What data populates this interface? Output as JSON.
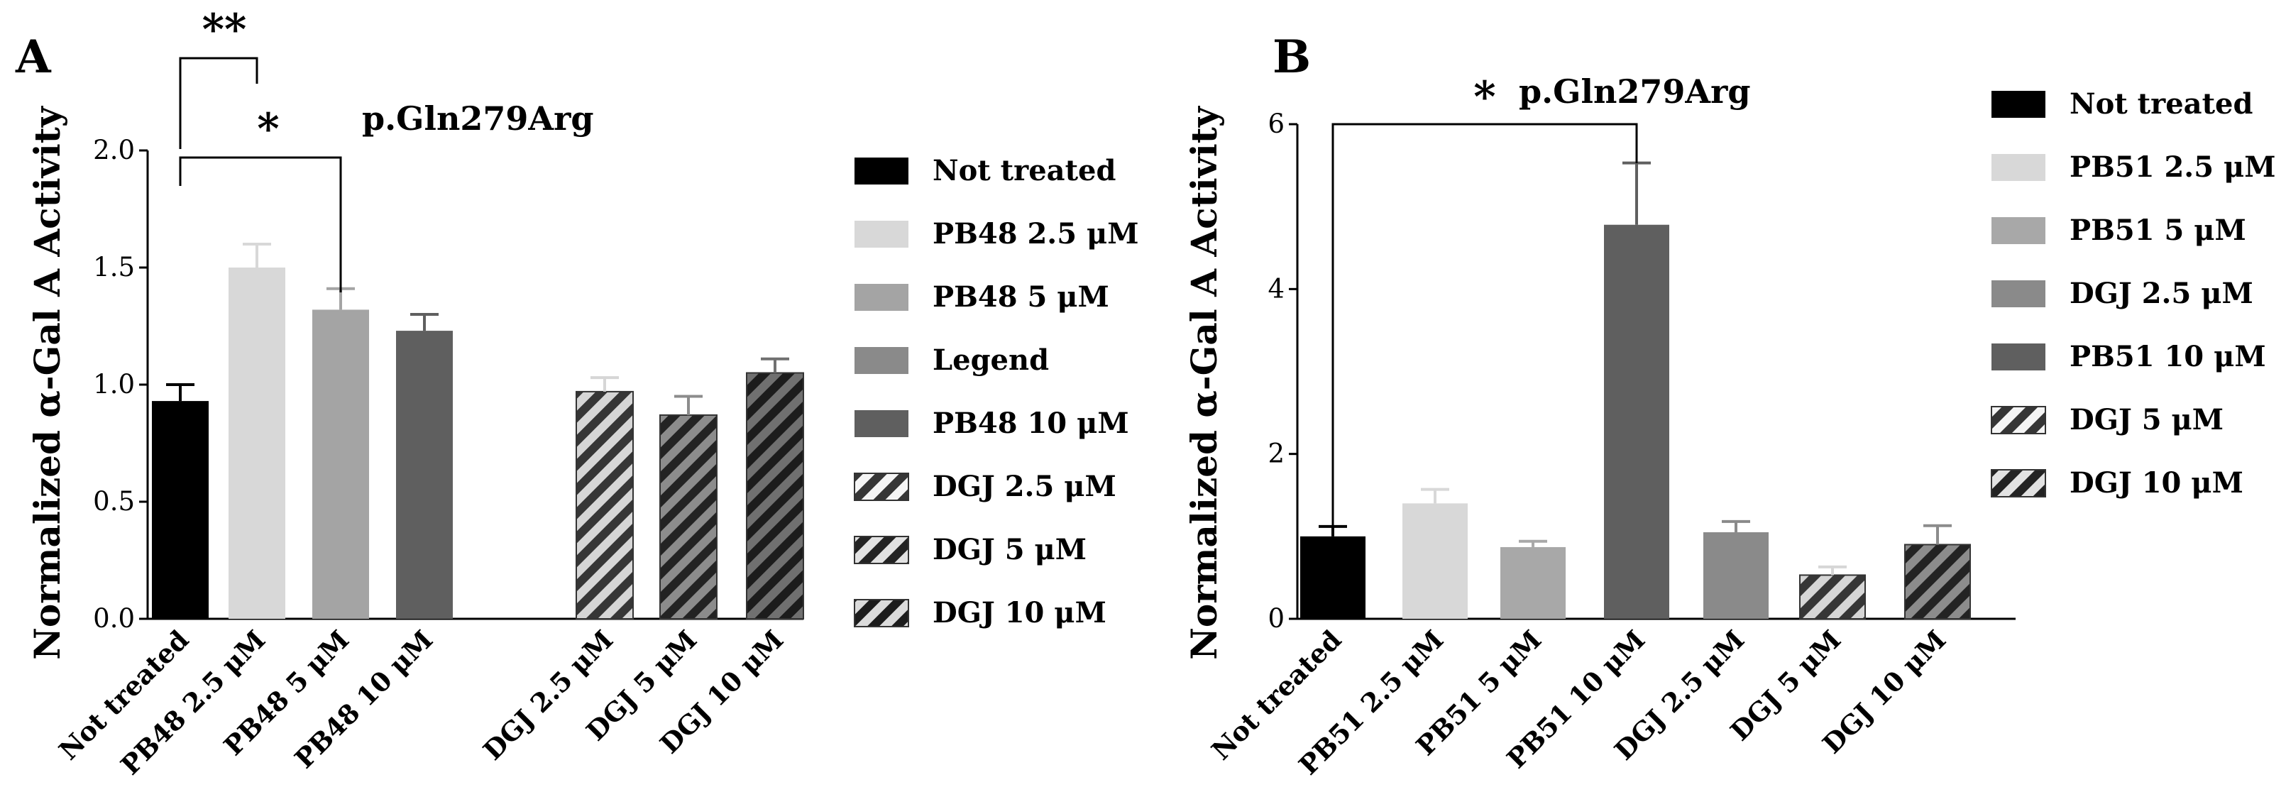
{
  "chart_data": [
    {
      "panel": "A",
      "type": "bar",
      "title": "p.Gln279Arg",
      "xlabel": "",
      "ylabel": "Normalized α-Gal A Activity",
      "ylim": [
        0,
        2.0
      ],
      "yticks": [
        "0.0",
        "0.5",
        "1.0",
        "1.5",
        "2.0"
      ],
      "categories": [
        "Not treated",
        "PB48 2.5 μM",
        "PB48 5 μM",
        "PB48 10 μM",
        "DGJ 2.5 μM",
        "DGJ 5 μM",
        "DGJ 10 μM"
      ],
      "values": [
        0.93,
        1.5,
        1.32,
        1.23,
        0.97,
        0.87,
        1.05
      ],
      "errors": [
        0.07,
        0.1,
        0.09,
        0.07,
        0.06,
        0.08,
        0.06
      ],
      "colors": [
        "#000000",
        "#d8d8d8",
        "#a4a4a4",
        "#5f5f5f",
        "#d6d6d6",
        "#8c8c8c",
        "#707070"
      ],
      "hatched": [
        false,
        false,
        false,
        false,
        true,
        true,
        true
      ],
      "significance": [
        {
          "from": "Not treated",
          "to": "PB48 2.5 μM",
          "label": "**"
        },
        {
          "from": "Not treated",
          "to": "PB48 5 μM",
          "label": "*"
        }
      ],
      "legend": [
        {
          "label": "Not treated",
          "color": "#000000",
          "hatched": false
        },
        {
          "label": "PB48 2.5 μM",
          "color": "#d8d8d8",
          "hatched": false
        },
        {
          "label": "PB48 5 μM",
          "color": "#a4a4a4",
          "hatched": false
        },
        {
          "label": "Legend",
          "color": "#8a8a8a",
          "hatched": false
        },
        {
          "label": "PB48 10 μM",
          "color": "#5f5f5f",
          "hatched": false
        },
        {
          "label": "DGJ 2.5 μM",
          "color": "#d6d6d6",
          "hatched": true
        },
        {
          "label": "DGJ 5 μM",
          "color": "#8c8c8c",
          "hatched": true
        },
        {
          "label": "DGJ 10 μM",
          "color": "#707070",
          "hatched": true
        }
      ]
    },
    {
      "panel": "B",
      "type": "bar",
      "title": "p.Gln279Arg",
      "xlabel": "",
      "ylabel": "Normalized α-Gal A Activity",
      "ylim": [
        0,
        6
      ],
      "yticks": [
        "0",
        "2",
        "4",
        "6"
      ],
      "categories": [
        "Not treated",
        "PB51 2.5 μM",
        "PB51 5 μM",
        "PB51 10 μM",
        "DGJ 2.5 μM",
        "DGJ 5 μM",
        "DGJ 10 μM"
      ],
      "values": [
        1.0,
        1.4,
        0.87,
        4.78,
        1.05,
        0.53,
        0.9
      ],
      "errors": [
        0.12,
        0.17,
        0.07,
        0.75,
        0.13,
        0.1,
        0.23
      ],
      "colors": [
        "#000000",
        "#d8d8d8",
        "#a8a8a8",
        "#5f5f5f",
        "#8a8a8a",
        "#d6d6d6",
        "#8c8c8c"
      ],
      "hatched": [
        false,
        false,
        false,
        false,
        false,
        true,
        true
      ],
      "significance": [
        {
          "from": "Not treated",
          "to": "PB51 10 μM",
          "label": "*"
        }
      ],
      "legend": [
        {
          "label": "Not treated",
          "color": "#000000",
          "hatched": false
        },
        {
          "label": "PB51 2.5 μM",
          "color": "#d8d8d8",
          "hatched": false
        },
        {
          "label": "PB51 5 μM",
          "color": "#a8a8a8",
          "hatched": false
        },
        {
          "label": "DGJ 2.5 μM",
          "color": "#8a8a8a",
          "hatched": false
        },
        {
          "label": "PB51 10 μM",
          "color": "#5f5f5f",
          "hatched": false
        },
        {
          "label": "DGJ 5 μM",
          "color": "#d6d6d6",
          "hatched": true
        },
        {
          "label": "DGJ 10 μM",
          "color": "#8c8c8c",
          "hatched": true
        }
      ]
    }
  ]
}
